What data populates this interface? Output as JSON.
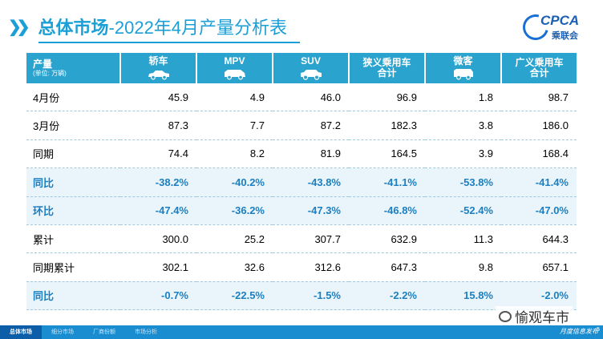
{
  "title": {
    "main": "总体市场",
    "sub": "-2022年4月产量分析表"
  },
  "logo": {
    "text": "CPCA",
    "sub": "乘联会"
  },
  "table": {
    "header": {
      "first_main": "产量",
      "first_unit": "(单位: 万辆)",
      "columns": [
        {
          "l1": "轿车",
          "l2": "",
          "icon": "sedan-icon"
        },
        {
          "l1": "MPV",
          "l2": "",
          "icon": "mpv-icon"
        },
        {
          "l1": "SUV",
          "l2": "",
          "icon": "suv-icon"
        },
        {
          "l1": "狭义乘用车",
          "l2": "合计",
          "icon": ""
        },
        {
          "l1": "微客",
          "l2": "",
          "icon": "microvan-icon"
        },
        {
          "l1": "广义乘用车",
          "l2": "合计",
          "icon": ""
        }
      ]
    },
    "rows": [
      {
        "label": "4月份",
        "hl": false,
        "values": [
          "45.9",
          "4.9",
          "46.0",
          "96.9",
          "1.8",
          "98.7"
        ]
      },
      {
        "label": "3月份",
        "hl": false,
        "values": [
          "87.3",
          "7.7",
          "87.2",
          "182.3",
          "3.8",
          "186.0"
        ]
      },
      {
        "label": "同期",
        "hl": false,
        "values": [
          "74.4",
          "8.2",
          "81.9",
          "164.5",
          "3.9",
          "168.4"
        ]
      },
      {
        "label": "同比",
        "hl": true,
        "values": [
          "-38.2%",
          "-40.2%",
          "-43.8%",
          "-41.1%",
          "-53.8%",
          "-41.4%"
        ]
      },
      {
        "label": "环比",
        "hl": true,
        "values": [
          "-47.4%",
          "-36.2%",
          "-47.3%",
          "-46.8%",
          "-52.4%",
          "-47.0%"
        ]
      },
      {
        "label": "累计",
        "hl": false,
        "values": [
          "300.0",
          "25.2",
          "307.7",
          "632.9",
          "11.3",
          "644.3"
        ]
      },
      {
        "label": "同期累计",
        "hl": false,
        "values": [
          "302.1",
          "32.6",
          "312.6",
          "647.3",
          "9.8",
          "657.1"
        ]
      },
      {
        "label": "同比",
        "hl": true,
        "values": [
          "-0.7%",
          "-22.5%",
          "-1.5%",
          "-2.2%",
          "15.8%",
          "-2.0%"
        ]
      }
    ]
  },
  "footer": {
    "tabs": [
      "总体市场",
      "细分市场",
      "厂商份额",
      "市场分析"
    ],
    "active": 0,
    "tagline": "月度信息发布"
  },
  "watermark": "愉观车市",
  "page_number": "5",
  "colors": {
    "accent": "#1a9fd6",
    "header": "#2aa3cf",
    "highlight_text": "#1b7fc0",
    "footer": "#1a8cd0"
  }
}
